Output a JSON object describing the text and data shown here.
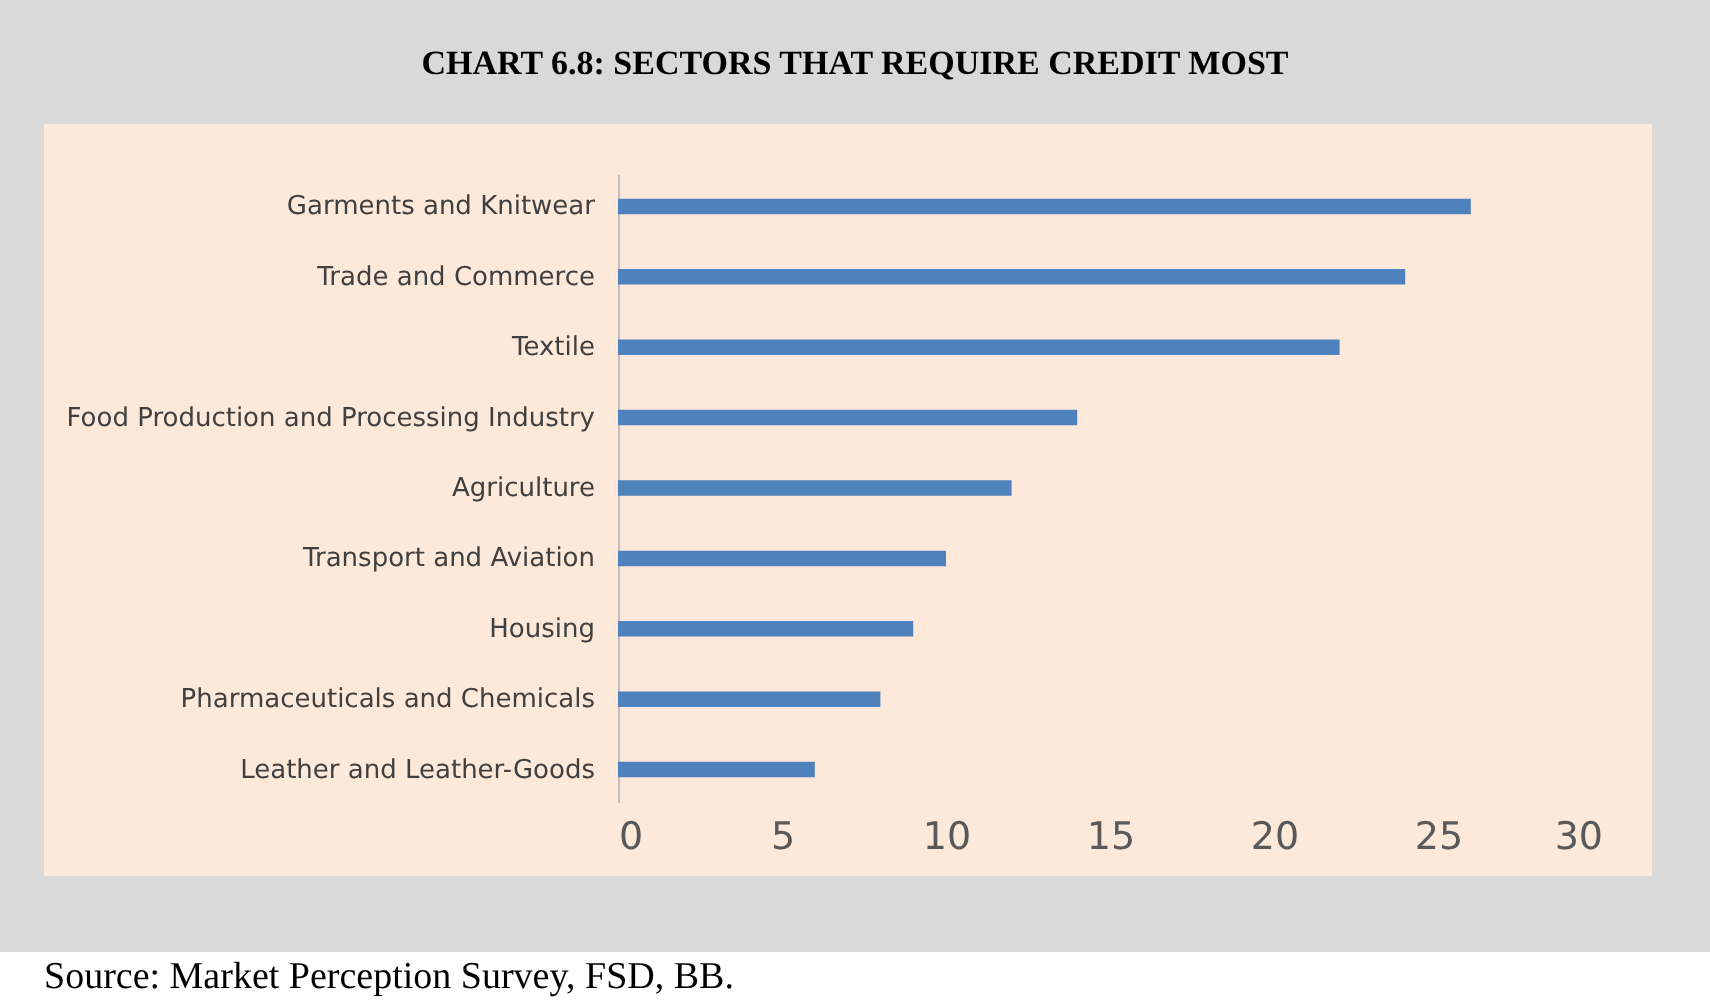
{
  "chart_data": {
    "type": "bar",
    "orientation": "horizontal",
    "title": "CHART 6.8: SECTORS THAT REQUIRE CREDIT MOST",
    "categories": [
      "Garments and Knitwear",
      "Trade and Commerce",
      "Textile",
      "Food Production and Processing Industry",
      "Agriculture",
      "Transport and Aviation",
      "Housing",
      "Pharmaceuticals and Chemicals",
      "Leather and Leather-Goods"
    ],
    "values": [
      26,
      24,
      22,
      14,
      12,
      10,
      9,
      8,
      6
    ],
    "color": "#4f81bd",
    "xlim": [
      0,
      30
    ],
    "xticks": [
      0,
      5,
      10,
      15,
      20,
      25,
      30
    ],
    "grid": false,
    "annotations": [
      "Source: Market Perception Survey, FSD, BB."
    ]
  }
}
